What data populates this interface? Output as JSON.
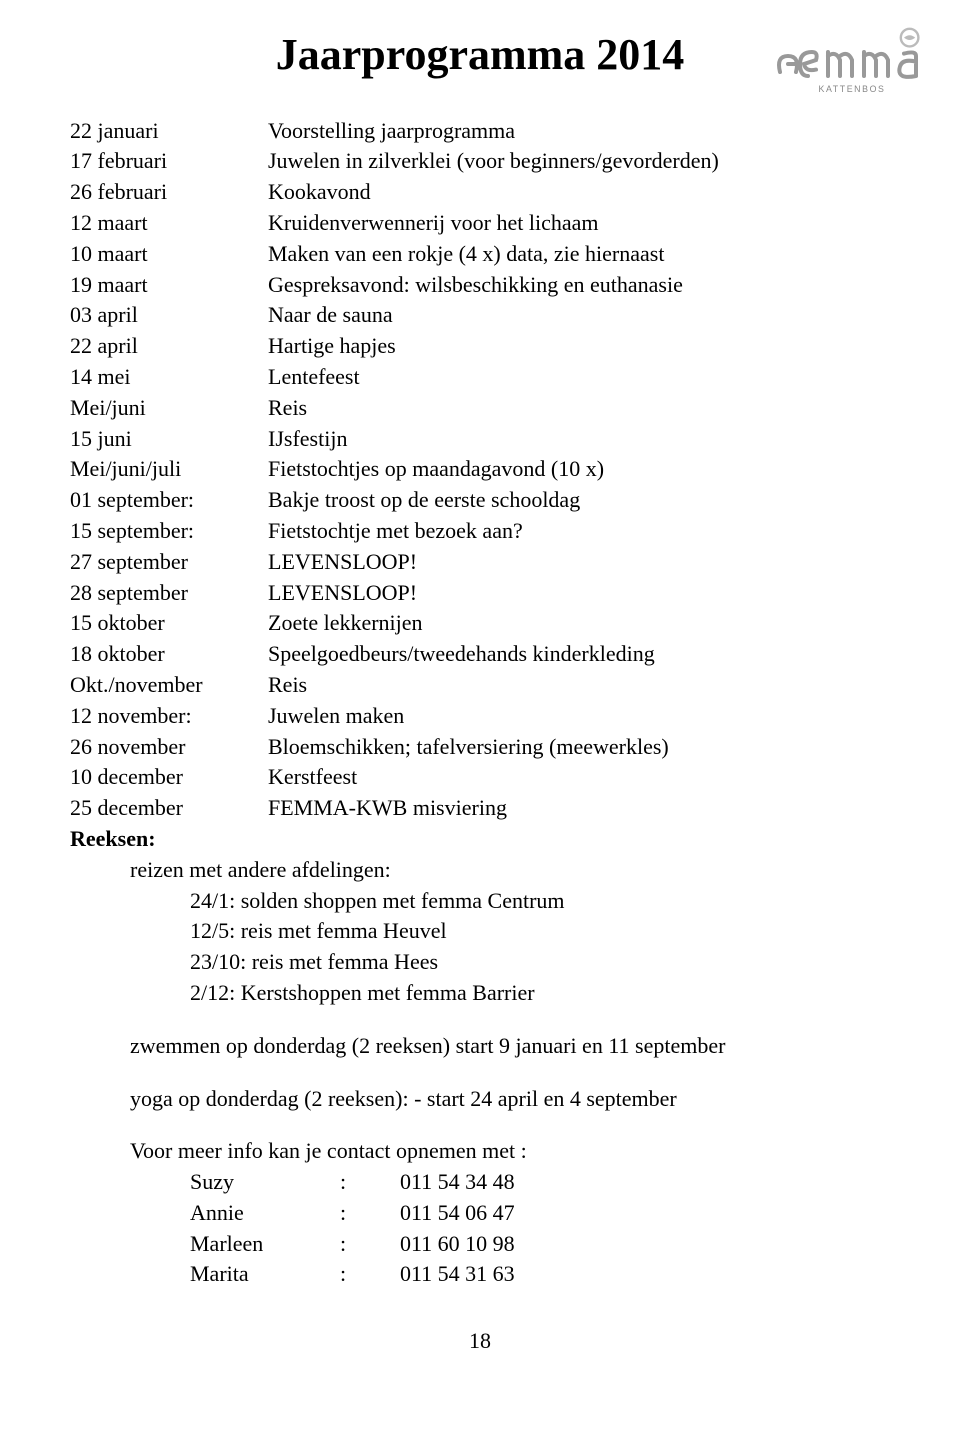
{
  "title": "Jaarprogramma 2014",
  "logo": {
    "brand": "femma",
    "subtext": "KATTENBOS"
  },
  "schedule": [
    {
      "date": "22 januari",
      "desc": "Voorstelling jaarprogramma"
    },
    {
      "date": "17 februari",
      "desc": "Juwelen in zilverklei (voor beginners/gevorderden)"
    },
    {
      "date": "26 februari",
      "desc": "Kookavond"
    },
    {
      "date": "12 maart",
      "desc": "Kruidenverwennerij voor het lichaam"
    },
    {
      "date": "10 maart",
      "desc": "Maken van een rokje (4 x) data, zie hiernaast"
    },
    {
      "date": "19 maart",
      "desc": "Gespreksavond: wilsbeschikking en euthanasie"
    },
    {
      "date": "03 april",
      "desc": "Naar de sauna"
    },
    {
      "date": "22 april",
      "desc": "Hartige hapjes"
    },
    {
      "date": "14 mei",
      "desc": "Lentefeest"
    },
    {
      "date": "Mei/juni",
      "desc": "Reis"
    },
    {
      "date": "15 juni",
      "desc": "IJsfestijn"
    },
    {
      "date": "Mei/juni/juli",
      "desc": "Fietstochtjes op maandagavond (10 x)"
    },
    {
      "date": "01 september:",
      "desc": "Bakje troost op de eerste schooldag"
    },
    {
      "date": "15 september:",
      "desc": "Fietstochtje met bezoek aan?"
    },
    {
      "date": "27 september",
      "desc": "LEVENSLOOP!"
    },
    {
      "date": "28 september",
      "desc": "LEVENSLOOP!"
    },
    {
      "date": "15 oktober",
      "desc": "Zoete lekkernijen"
    },
    {
      "date": "18 oktober",
      "desc": "Speelgoedbeurs/tweedehands kinderkleding"
    },
    {
      "date": "Okt./november",
      "desc": "Reis"
    },
    {
      "date": "12  november:",
      "desc": "Juwelen maken"
    },
    {
      "date": "26  november",
      "desc": "Bloemschikken; tafelversiering (meewerkles)"
    },
    {
      "date": "10  december",
      "desc": "Kerstfeest"
    },
    {
      "date": "25 december",
      "desc": "FEMMA-KWB misviering"
    }
  ],
  "reeksen": {
    "label": "Reeksen:",
    "intro": "reizen met andere afdelingen:",
    "trips": [
      "24/1:   solden shoppen met femma Centrum",
      "12/5:  reis met femma Heuvel",
      "23/10: reis met femma Hees",
      "2/12:  Kerstshoppen met femma Barrier"
    ],
    "extra": [
      "zwemmen op donderdag  (2 reeksen) start 9 januari en 11 september",
      "yoga op donderdag (2 reeksen): - start 24 april en 4 september"
    ]
  },
  "contact": {
    "intro": "Voor meer info kan je contact opnemen met :",
    "people": [
      {
        "name": "Suzy",
        "phone": "011 54 34 48"
      },
      {
        "name": "Annie",
        "phone": "011 54 06 47"
      },
      {
        "name": "Marleen",
        "phone": "011 60 10 98"
      },
      {
        "name": "Marita",
        "phone": "011 54 31 63"
      }
    ]
  },
  "pageNumber": "18"
}
